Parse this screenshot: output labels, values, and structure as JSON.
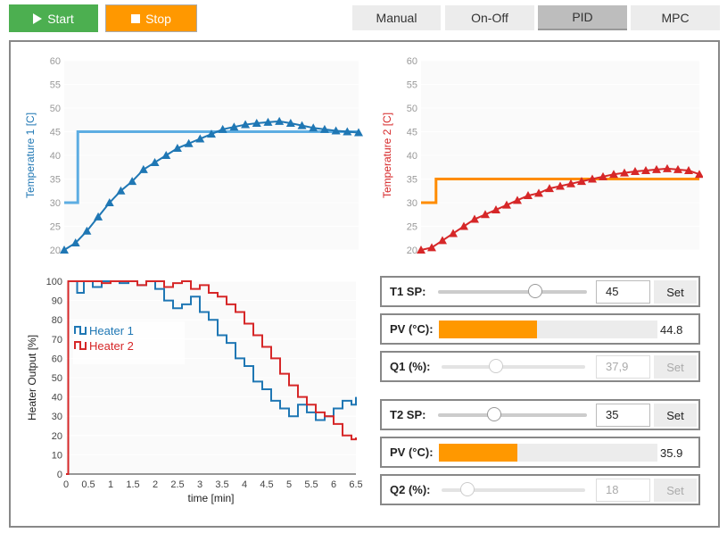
{
  "toolbar": {
    "start_label": "Start",
    "stop_label": "Stop"
  },
  "modes": [
    {
      "label": "Manual",
      "active": false
    },
    {
      "label": "On-Off",
      "active": false
    },
    {
      "label": "PID",
      "active": true
    },
    {
      "label": "MPC",
      "active": false
    }
  ],
  "controls": {
    "t1_sp": {
      "label": "T1 SP:",
      "value": "45",
      "slider_fraction": 0.65,
      "button": "Set"
    },
    "pv1": {
      "label": "PV (°C):",
      "value": "44.8",
      "bar_fraction": 0.45
    },
    "q1": {
      "label": "Q1 (%):",
      "value": "37,9",
      "slider_fraction": 0.38,
      "button": "Set"
    },
    "t2_sp": {
      "label": "T2 SP:",
      "value": "35",
      "slider_fraction": 0.38,
      "button": "Set"
    },
    "pv2": {
      "label": "PV (°C):",
      "value": "35.9",
      "bar_fraction": 0.36
    },
    "q2": {
      "label": "Q2 (%):",
      "value": "18",
      "slider_fraction": 0.18,
      "button": "Set"
    }
  },
  "colors": {
    "t1": "#1f77b4",
    "sp1": "#5dade2",
    "t2": "#d62728",
    "sp2": "#ff8c00",
    "start": "#4caf50",
    "stop": "#ff9800"
  },
  "chart_data": [
    {
      "type": "line",
      "ylabel": "Temperature 1 [C]",
      "ylim": [
        20,
        60
      ],
      "yticks": [
        20,
        25,
        30,
        35,
        40,
        45,
        50,
        55,
        60
      ],
      "xlim": [
        0,
        6.5
      ],
      "series": [
        {
          "style": "step",
          "x": [
            0,
            0.3,
            0.3,
            6.5
          ],
          "values": [
            30,
            30,
            45,
            45
          ]
        },
        {
          "style": "triangle-markers",
          "x": [
            0,
            0.25,
            0.5,
            0.75,
            1.0,
            1.25,
            1.5,
            1.75,
            2.0,
            2.25,
            2.5,
            2.75,
            3.0,
            3.25,
            3.5,
            3.75,
            4.0,
            4.25,
            4.5,
            4.75,
            5.0,
            5.25,
            5.5,
            5.75,
            6.0,
            6.25,
            6.5
          ],
          "values": [
            20,
            21.5,
            24,
            27,
            30,
            32.5,
            34.5,
            37,
            38.5,
            40,
            41.5,
            42.5,
            43.5,
            44.5,
            45.5,
            46,
            46.5,
            46.8,
            47,
            47.2,
            46.8,
            46.3,
            45.8,
            45.5,
            45.2,
            45,
            44.8
          ]
        }
      ]
    },
    {
      "type": "line",
      "ylabel": "Temperature 2 [C]",
      "ylim": [
        20,
        60
      ],
      "yticks": [
        20,
        25,
        30,
        35,
        40,
        45,
        50,
        55,
        60
      ],
      "xlim": [
        0,
        6.5
      ],
      "series": [
        {
          "style": "step",
          "x": [
            0,
            0.35,
            0.35,
            6.5
          ],
          "values": [
            30,
            30,
            35,
            35
          ]
        },
        {
          "style": "triangle-markers",
          "x": [
            0,
            0.25,
            0.5,
            0.75,
            1.0,
            1.25,
            1.5,
            1.75,
            2.0,
            2.25,
            2.5,
            2.75,
            3.0,
            3.25,
            3.5,
            3.75,
            4.0,
            4.25,
            4.5,
            4.75,
            5.0,
            5.25,
            5.5,
            5.75,
            6.0,
            6.25,
            6.5
          ],
          "values": [
            20,
            20.5,
            22,
            23.5,
            25,
            26.5,
            27.5,
            28.5,
            29.5,
            30.5,
            31.5,
            32,
            33,
            33.5,
            34,
            34.5,
            35,
            35.5,
            36,
            36.3,
            36.6,
            36.8,
            37,
            37.2,
            37,
            36.8,
            36
          ]
        }
      ]
    },
    {
      "type": "line",
      "ylabel": "Heater Output [%]",
      "xlabel": "time [min]",
      "ylim": [
        0,
        100
      ],
      "yticks": [
        0,
        10,
        20,
        30,
        40,
        50,
        60,
        70,
        80,
        90,
        100
      ],
      "xlim": [
        0,
        6.5
      ],
      "xticks": [
        "0",
        "0.5",
        "1",
        "1.5",
        "2",
        "2.5",
        "3",
        "3.5",
        "4",
        "4.5",
        "5",
        "5.5",
        "6",
        "6.5"
      ],
      "series": [
        {
          "name": "Heater 1",
          "style": "step",
          "x": [
            0,
            0.05,
            0.25,
            0.4,
            0.6,
            0.8,
            1.0,
            1.2,
            1.4,
            1.6,
            1.8,
            2.0,
            2.2,
            2.4,
            2.6,
            2.8,
            3.0,
            3.2,
            3.4,
            3.6,
            3.8,
            4.0,
            4.2,
            4.4,
            4.6,
            4.8,
            5.0,
            5.2,
            5.4,
            5.6,
            5.8,
            6.0,
            6.2,
            6.4,
            6.5
          ],
          "values": [
            0,
            100,
            94,
            100,
            97,
            100,
            100,
            99,
            100,
            98,
            100,
            96,
            90,
            86,
            88,
            92,
            84,
            80,
            72,
            68,
            60,
            56,
            48,
            44,
            38,
            34,
            30,
            36,
            32,
            28,
            30,
            34,
            38,
            36,
            40
          ]
        },
        {
          "name": "Heater 2",
          "style": "step",
          "x": [
            0,
            0.05,
            0.4,
            0.6,
            0.8,
            1.0,
            1.2,
            1.4,
            1.6,
            1.8,
            2.0,
            2.2,
            2.4,
            2.6,
            2.8,
            3.0,
            3.2,
            3.4,
            3.6,
            3.8,
            4.0,
            4.2,
            4.4,
            4.6,
            4.8,
            5.0,
            5.2,
            5.4,
            5.6,
            5.8,
            6.0,
            6.2,
            6.4,
            6.5
          ],
          "values": [
            0,
            100,
            100,
            100,
            99,
            100,
            100,
            100,
            98,
            100,
            100,
            97,
            99,
            100,
            96,
            98,
            94,
            92,
            88,
            84,
            78,
            72,
            66,
            60,
            52,
            46,
            40,
            36,
            32,
            30,
            26,
            20,
            18,
            19
          ]
        }
      ]
    }
  ]
}
